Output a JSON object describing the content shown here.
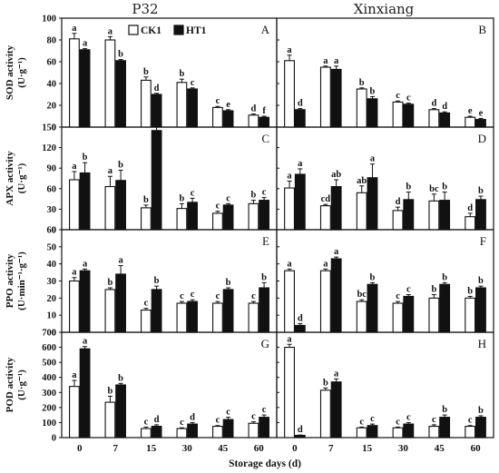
{
  "figure": {
    "columns": [
      "P32",
      "Xinxiang"
    ],
    "xlabel": "Storage days (d)"
  },
  "legend": [
    "CK1",
    "HT1"
  ],
  "chart_data": {
    "type": "bar",
    "categories": [
      "0",
      "7",
      "15",
      "30",
      "45",
      "60"
    ],
    "xlabel": "Storage days (d)",
    "series_names": [
      "CK1",
      "HT1"
    ],
    "series_colors": [
      "#ffffff",
      "#111111"
    ],
    "rows": [
      {
        "ylabel": "SOD activity",
        "yunit": "(U·g⁻¹)",
        "ylim": [
          0,
          100
        ],
        "yticks": [
          0,
          20,
          40,
          60,
          80,
          100
        ],
        "panels": [
          {
            "label": "A",
            "column": "P32",
            "series": [
              {
                "name": "CK1",
                "values": [
                  81,
                  80,
                  43,
                  41,
                  18,
                  11
                ],
                "errors": [
                  5,
                  3,
                  3,
                  3,
                  1,
                  1
                ],
                "letters": [
                  "a",
                  "a",
                  "b",
                  "b",
                  "c",
                  "d"
                ]
              },
              {
                "name": "HT1",
                "values": [
                  71,
                  61,
                  30,
                  35,
                  15,
                  9
                ],
                "errors": [
                  1,
                  1,
                  1,
                  1,
                  1,
                  1
                ],
                "letters": [
                  "a",
                  "b",
                  "d",
                  "c",
                  "e",
                  "f"
                ]
              }
            ]
          },
          {
            "label": "B",
            "column": "Xinxiang",
            "series": [
              {
                "name": "CK1",
                "values": [
                  61,
                  55,
                  35,
                  23,
                  16,
                  9
                ],
                "errors": [
                  5,
                  1,
                  1,
                  1,
                  1,
                  1
                ],
                "letters": [
                  "a",
                  "a",
                  "b",
                  "c",
                  "d",
                  "e"
                ]
              },
              {
                "name": "HT1",
                "values": [
                  16,
                  53,
                  26,
                  21,
                  13,
                  7
                ],
                "errors": [
                  1,
                  3,
                  2,
                  1,
                  1,
                  1
                ],
                "letters": [
                  "d",
                  "a",
                  "b",
                  "c",
                  "d",
                  "e"
                ]
              }
            ]
          }
        ]
      },
      {
        "ylabel": "APX activity",
        "yunit": "(U·g⁻¹)",
        "ylim": [
          0,
          150
        ],
        "yticks": [
          0,
          30,
          60,
          90,
          120,
          150
        ],
        "panels": [
          {
            "label": "C",
            "column": "P32",
            "series": [
              {
                "name": "CK1",
                "values": [
                  73,
                  63,
                  32,
                  31,
                  24,
                  38
                ],
                "errors": [
                  12,
                  15,
                  4,
                  7,
                  3,
                  5
                ],
                "letters": [
                  "a",
                  "a",
                  "b",
                  "b",
                  "c",
                  "b"
                ]
              },
              {
                "name": "HT1",
                "values": [
                  83,
                  72,
                  145,
                  40,
                  36,
                  43
                ],
                "errors": [
                  15,
                  15,
                  15,
                  6,
                  2,
                  4
                ],
                "letters": [
                  "b",
                  "b",
                  "a",
                  "c",
                  "c",
                  "c"
                ]
              }
            ]
          },
          {
            "label": "D",
            "column": "Xinxiang",
            "series": [
              {
                "name": "CK1",
                "values": [
                  61,
                  35,
                  54,
                  28,
                  42,
                  19
                ],
                "errors": [
                  10,
                  2,
                  10,
                  5,
                  10,
                  5
                ],
                "letters": [
                  "a",
                  "cd",
                  "ab",
                  "d",
                  "bc",
                  "d"
                ]
              },
              {
                "name": "HT1",
                "values": [
                  81,
                  63,
                  76,
                  44,
                  43,
                  44
                ],
                "errors": [
                  8,
                  10,
                  20,
                  11,
                  12,
                  5
                ],
                "letters": [
                  "a",
                  "ab",
                  "a",
                  "b",
                  "b",
                  "b"
                ]
              }
            ]
          }
        ]
      },
      {
        "ylabel": "PPO activity",
        "yunit": "(U·min⁻¹·g⁻¹)",
        "ylim": [
          0,
          60
        ],
        "yticks": [
          0,
          10,
          20,
          30,
          40,
          50,
          60
        ],
        "panels": [
          {
            "label": "E",
            "column": "P32",
            "series": [
              {
                "name": "CK1",
                "values": [
                  30,
                  25,
                  13,
                  17,
                  17,
                  17
                ],
                "errors": [
                  2,
                  1,
                  1,
                  1,
                  1,
                  1
                ],
                "letters": [
                  "a",
                  "b",
                  "c",
                  "c",
                  "c",
                  "c"
                ]
              },
              {
                "name": "HT1",
                "values": [
                  36,
                  34,
                  25,
                  18,
                  25,
                  26
                ],
                "errors": [
                  1,
                  5,
                  2,
                  1,
                  1,
                  3
                ],
                "letters": [
                  "a",
                  "a",
                  "b",
                  "c",
                  "b",
                  "b"
                ]
              }
            ]
          },
          {
            "label": "F",
            "column": "Xinxiang",
            "series": [
              {
                "name": "CK1",
                "values": [
                  36,
                  36,
                  18,
                  17,
                  20,
                  20
                ],
                "errors": [
                  1,
                  1,
                  1,
                  1,
                  2,
                  1
                ],
                "letters": [
                  "a",
                  "a",
                  "bc",
                  "c",
                  "b",
                  "b"
                ]
              },
              {
                "name": "HT1",
                "values": [
                  4,
                  43,
                  28,
                  21,
                  28,
                  26
                ],
                "errors": [
                  1,
                  1,
                  1,
                  1,
                  1,
                  1
                ],
                "letters": [
                  "d",
                  "a",
                  "b",
                  "c",
                  "b",
                  "b"
                ]
              }
            ]
          }
        ]
      },
      {
        "ylabel": "POD activity",
        "yunit": "(U·g⁻¹)",
        "ylim": [
          0,
          700
        ],
        "yticks": [
          0,
          100,
          200,
          300,
          400,
          500,
          600,
          700
        ],
        "panels": [
          {
            "label": "G",
            "column": "P32",
            "series": [
              {
                "name": "CK1",
                "values": [
                  340,
                  235,
                  60,
                  60,
                  75,
                  95
                ],
                "errors": [
                  40,
                  40,
                  10,
                  5,
                  5,
                  10
                ],
                "letters": [
                  "a",
                  "b",
                  "c",
                  "c",
                  "c",
                  "c"
                ]
              },
              {
                "name": "HT1",
                "values": [
                  590,
                  350,
                  75,
                  90,
                  120,
                  135
                ],
                "errors": [
                  15,
                  10,
                  10,
                  10,
                  15,
                  15
                ],
                "letters": [
                  "a",
                  "b",
                  "d",
                  "d",
                  "c",
                  "c"
                ]
              }
            ]
          },
          {
            "label": "H",
            "column": "Xinxiang",
            "series": [
              {
                "name": "CK1",
                "values": [
                  600,
                  315,
                  65,
                  65,
                  75,
                  75
                ],
                "errors": [
                  20,
                  15,
                  5,
                  5,
                  10,
                  5
                ],
                "letters": [
                  "a",
                  "b",
                  "c",
                  "c",
                  "c",
                  "c"
                ]
              },
              {
                "name": "HT1",
                "values": [
                  15,
                  370,
                  80,
                  90,
                  135,
                  135
                ],
                "errors": [
                  2,
                  20,
                  10,
                  10,
                  15,
                  10
                ],
                "letters": [
                  "d",
                  "a",
                  "c",
                  "c",
                  "b",
                  "b"
                ]
              }
            ]
          }
        ]
      }
    ]
  }
}
